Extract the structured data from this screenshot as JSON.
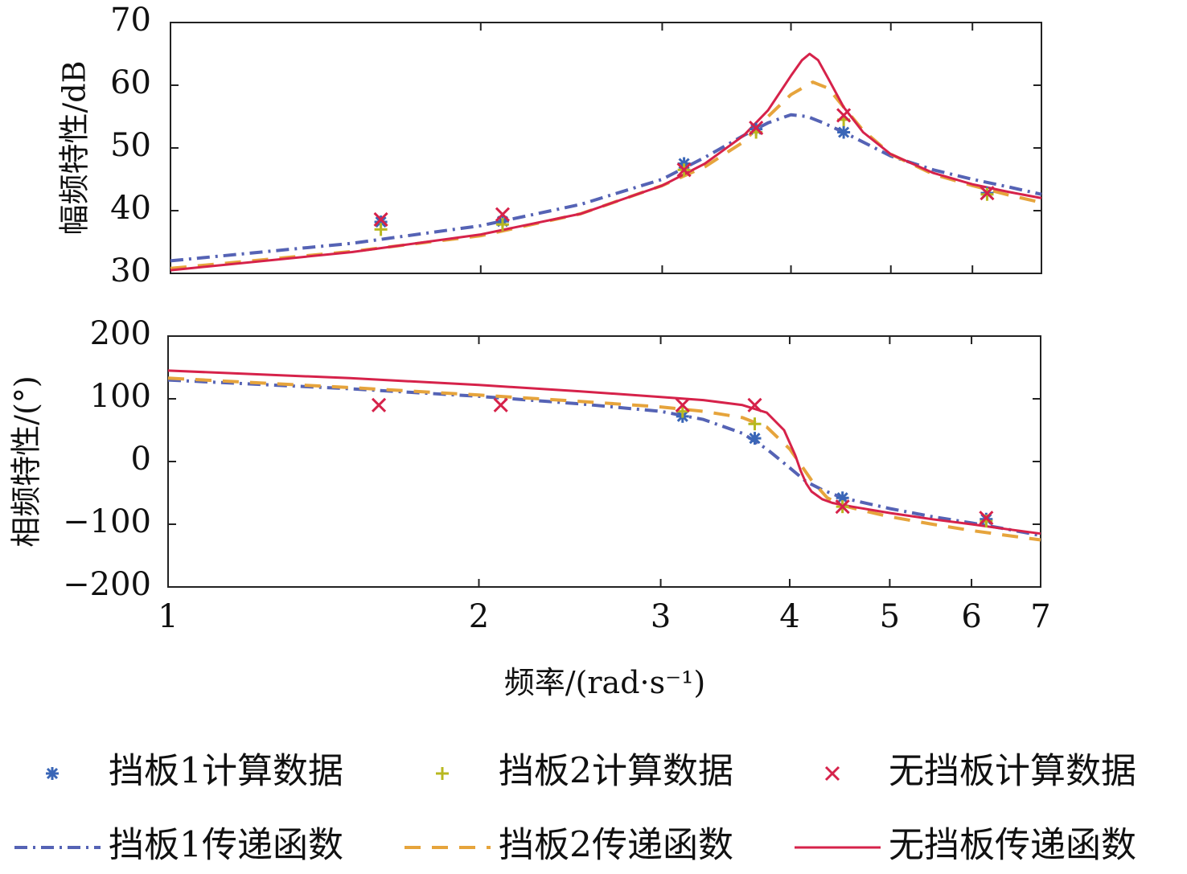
{
  "chart_data": [
    {
      "type": "line",
      "panel": "top",
      "title": "",
      "xlabel": "",
      "ylabel": "幅频特性/dB",
      "xscale": "log",
      "xlim": [
        1,
        7
      ],
      "ylim": [
        30,
        70
      ],
      "yticks": [
        30,
        40,
        50,
        60,
        70
      ],
      "grid": false,
      "series": [
        {
          "name": "挡板1传递函数",
          "style": "dashdot",
          "x": [
            1.0,
            1.5,
            2.0,
            2.5,
            3.0,
            3.3,
            3.6,
            3.8,
            4.0,
            4.15,
            4.3,
            4.5,
            5.0,
            5.5,
            6.0,
            6.5,
            7.0
          ],
          "y": [
            32.0,
            34.8,
            37.6,
            41.0,
            45.0,
            48.5,
            52.0,
            54.0,
            55.3,
            55.0,
            54.0,
            52.5,
            48.7,
            46.5,
            45.0,
            43.8,
            42.6
          ]
        },
        {
          "name": "挡板2传递函数",
          "style": "dashed",
          "x": [
            1.0,
            1.5,
            2.0,
            2.5,
            3.0,
            3.3,
            3.6,
            3.8,
            4.0,
            4.2,
            4.35,
            4.5,
            4.7,
            5.0,
            5.5,
            6.0,
            6.5,
            7.0
          ],
          "y": [
            30.8,
            33.5,
            36.0,
            39.5,
            44.0,
            47.0,
            51.0,
            55.0,
            58.5,
            60.5,
            59.5,
            56.5,
            52.8,
            49.0,
            45.8,
            44.0,
            42.5,
            41.3
          ]
        },
        {
          "name": "无挡板传递函数",
          "style": "solid",
          "x": [
            1.0,
            1.5,
            2.0,
            2.5,
            3.0,
            3.3,
            3.6,
            3.8,
            4.0,
            4.1,
            4.17,
            4.25,
            4.35,
            4.5,
            4.7,
            5.0,
            5.5,
            6.0,
            6.5,
            7.0
          ],
          "y": [
            30.5,
            33.4,
            36.2,
            39.5,
            44.0,
            47.5,
            52.0,
            56.0,
            61.5,
            64.0,
            65.0,
            64.0,
            61.0,
            56.5,
            52.5,
            49.0,
            46.0,
            44.2,
            43.0,
            42.0
          ]
        },
        {
          "name": "挡板1计算数据",
          "style": "marker",
          "marker": "*",
          "x": [
            1.6,
            2.1,
            3.15,
            3.7,
            4.5,
            6.2
          ],
          "y": [
            38.2,
            38.3,
            47.5,
            53.0,
            52.5,
            42.8
          ]
        },
        {
          "name": "挡板2计算数据",
          "style": "marker",
          "marker": "+",
          "x": [
            1.6,
            2.1,
            3.15,
            3.7,
            4.5,
            6.2
          ],
          "y": [
            37.0,
            37.8,
            46.5,
            52.5,
            54.5,
            42.6
          ]
        },
        {
          "name": "无挡板计算数据",
          "style": "marker",
          "marker": "x",
          "x": [
            1.6,
            2.1,
            3.15,
            3.7,
            4.5,
            6.2
          ],
          "y": [
            38.6,
            39.4,
            46.5,
            53.2,
            55.2,
            42.8
          ]
        }
      ]
    },
    {
      "type": "line",
      "panel": "bottom",
      "title": "",
      "xlabel": "频率/(rad·s⁻¹)",
      "ylabel": "相频特性/(°)",
      "xscale": "log",
      "xlim": [
        1,
        7
      ],
      "ylim": [
        -200,
        200
      ],
      "yticks": [
        -200,
        -100,
        0,
        100,
        200
      ],
      "ytick_labels": [
        "−200",
        "−100",
        "0",
        "100",
        "200"
      ],
      "xticks": [
        1,
        2,
        3,
        4,
        5,
        6,
        7
      ],
      "grid": false,
      "series": [
        {
          "name": "挡板1传递函数",
          "style": "dashdot",
          "x": [
            1.0,
            1.5,
            2.0,
            2.5,
            3.0,
            3.3,
            3.6,
            3.8,
            4.0,
            4.15,
            4.3,
            4.5,
            5.0,
            5.5,
            6.0,
            6.5,
            7.0
          ],
          "y": [
            130,
            116,
            104,
            92,
            80,
            67,
            45,
            20,
            -10,
            -32,
            -45,
            -58,
            -75,
            -88,
            -98,
            -108,
            -118
          ]
        },
        {
          "name": "挡板2传递函数",
          "style": "dashed",
          "x": [
            1.0,
            1.5,
            2.0,
            2.5,
            3.0,
            3.3,
            3.6,
            3.8,
            4.0,
            4.1,
            4.2,
            4.35,
            4.5,
            4.7,
            5.0,
            5.5,
            6.0,
            6.5,
            7.0
          ],
          "y": [
            133,
            118,
            106,
            96,
            87,
            80,
            70,
            55,
            20,
            -5,
            -30,
            -58,
            -70,
            -78,
            -88,
            -100,
            -110,
            -118,
            -125
          ]
        },
        {
          "name": "无挡板传递函数",
          "style": "solid",
          "x": [
            1.0,
            1.5,
            2.0,
            2.5,
            3.0,
            3.3,
            3.6,
            3.8,
            3.95,
            4.05,
            4.1,
            4.15,
            4.2,
            4.3,
            4.4,
            4.6,
            5.0,
            5.5,
            6.0,
            6.5,
            7.0
          ],
          "y": [
            145,
            133,
            122,
            112,
            103,
            98,
            90,
            78,
            50,
            10,
            -15,
            -35,
            -48,
            -60,
            -66,
            -72,
            -82,
            -92,
            -100,
            -108,
            -115
          ]
        },
        {
          "name": "挡板1计算数据",
          "style": "marker",
          "marker": "*",
          "x": [
            3.15,
            3.7,
            4.5,
            6.2
          ],
          "y": [
            72,
            37,
            -58,
            -92
          ]
        },
        {
          "name": "挡板2计算数据",
          "style": "marker",
          "marker": "+",
          "x": [
            3.15,
            3.7,
            4.5,
            6.2
          ],
          "y": [
            80,
            60,
            -72,
            -95
          ]
        },
        {
          "name": "无挡板计算数据",
          "style": "marker",
          "marker": "x",
          "x": [
            1.6,
            2.1,
            3.15,
            3.7,
            4.5,
            6.2
          ],
          "y": [
            90,
            90,
            90,
            90,
            -72,
            -90
          ]
        }
      ]
    }
  ],
  "legend": [
    {
      "label": "挡板1计算数据",
      "kind": "marker",
      "marker": "*",
      "color": "#3a66b7"
    },
    {
      "label": "挡板2计算数据",
      "kind": "marker",
      "marker": "+",
      "color": "#b8b820"
    },
    {
      "label": "无挡板计算数据",
      "kind": "marker",
      "marker": "x",
      "color": "#d6224a"
    },
    {
      "label": "挡板1传递函数",
      "kind": "line",
      "dash": "dashdot",
      "color": "#5563b5"
    },
    {
      "label": "挡板2传递函数",
      "kind": "line",
      "dash": "dashed",
      "color": "#e6a43c"
    },
    {
      "label": "无挡板传递函数",
      "kind": "line",
      "dash": "solid",
      "color": "#d6224a"
    }
  ],
  "colors": {
    "baffle1": "#5563b5",
    "baffle1_marker": "#3a66b7",
    "baffle2": "#e6a43c",
    "baffle2_marker": "#b8b820",
    "none": "#d6224a",
    "axis": "#222222"
  }
}
